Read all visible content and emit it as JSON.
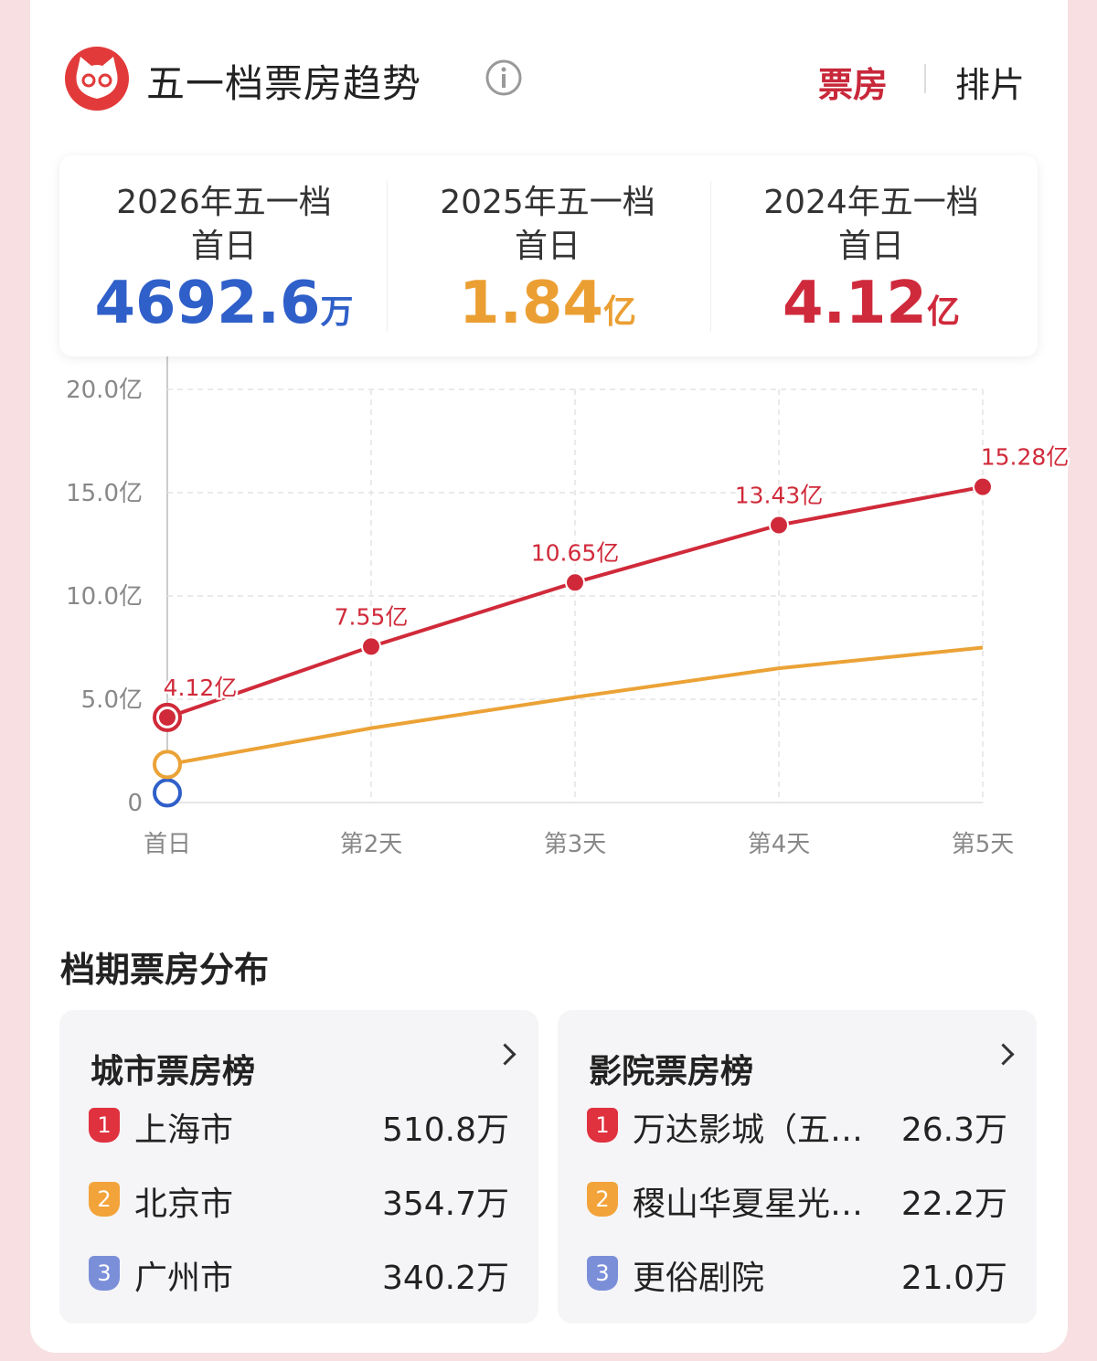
{
  "header": {
    "title": "五一档票房趋势",
    "tabs": [
      "票房",
      "排片"
    ]
  },
  "summary": [
    {
      "label": "2026年五一档",
      "sub": "首日",
      "value": "4692.6",
      "unit": "万",
      "color": "#2f5fc9"
    },
    {
      "label": "2025年五一档",
      "sub": "首日",
      "value": "1.84",
      "unit": "亿",
      "color": "#eb9f33"
    },
    {
      "label": "2024年五一档",
      "sub": "首日",
      "value": "4.12",
      "unit": "亿",
      "color": "#cf2a3c"
    }
  ],
  "chart_data": {
    "type": "line",
    "categories": [
      "首日",
      "第2天",
      "第3天",
      "第4天",
      "第5天"
    ],
    "ylim": [
      0,
      20
    ],
    "yticks": [
      0,
      {
        "value": 5,
        "label": "5.0亿"
      },
      {
        "value": 10,
        "label": "10.0亿"
      },
      {
        "value": 15,
        "label": "15.0亿"
      },
      {
        "value": 20,
        "label": "20.0亿"
      }
    ],
    "grid": true,
    "series": [
      {
        "color": "#d02a3a",
        "values": [
          4.12,
          7.55,
          10.65,
          13.43,
          15.28
        ],
        "value_labels": [
          "4.12亿",
          "7.55亿",
          "10.65亿",
          "13.43亿",
          "15.28亿"
        ]
      },
      {
        "color": "#eba236",
        "values": [
          1.84,
          3.6,
          5.1,
          6.5,
          7.5
        ]
      },
      {
        "color": "#2f5fc9",
        "values": [
          0.46926,
          null,
          null,
          null,
          null
        ]
      }
    ]
  },
  "distribution": {
    "title": "档期票房分布",
    "panels": [
      {
        "title": "城市票房榜",
        "rows": [
          {
            "rank": "1",
            "name": "上海市",
            "value": "510.8万"
          },
          {
            "rank": "2",
            "name": "北京市",
            "value": "354.7万"
          },
          {
            "rank": "3",
            "name": "广州市",
            "value": "340.2万"
          }
        ]
      },
      {
        "title": "影院票房榜",
        "rows": [
          {
            "rank": "1",
            "name": "万达影城（五…",
            "value": "26.3万"
          },
          {
            "rank": "2",
            "name": "稷山华夏星光…",
            "value": "22.2万"
          },
          {
            "rank": "3",
            "name": "更俗剧院",
            "value": "21.0万"
          }
        ]
      }
    ]
  }
}
